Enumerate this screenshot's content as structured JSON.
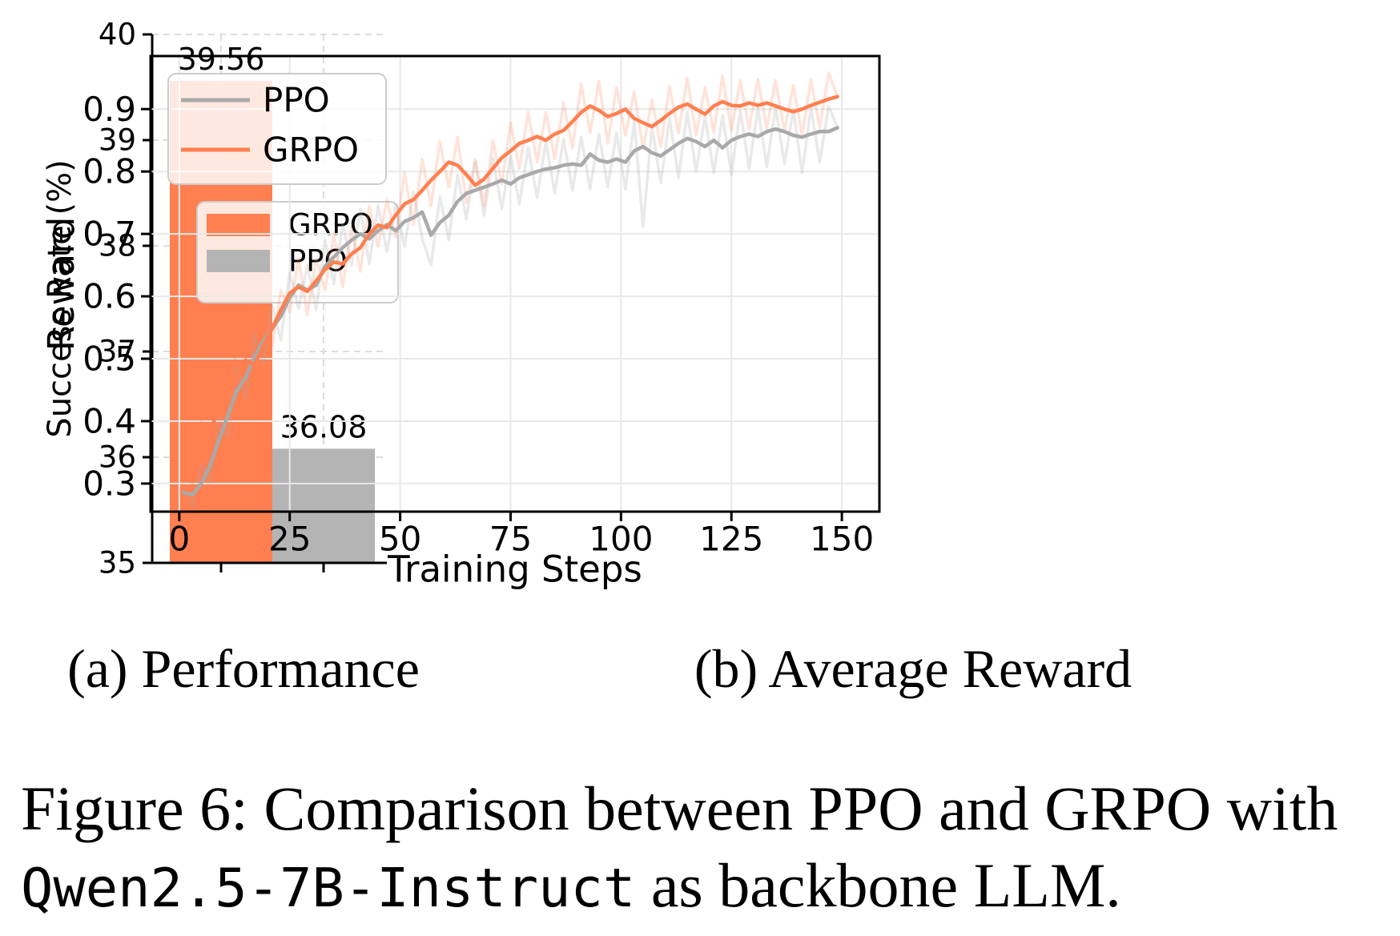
{
  "figure": {
    "subcaption_a": "(a) Performance",
    "subcaption_b": "(b) Average Reward",
    "caption_line1": "Figure 6: Comparison between PPO and GRPO with",
    "caption_mono": "Qwen2.5-7B-Instruct",
    "caption_line2_rest": " as backbone LLM."
  },
  "colors": {
    "grpo": "#ff7f50",
    "grpo_raw": "rgba(255,127,80,0.22)",
    "ppo_bar": "#b4b4b4",
    "ppo_line": "#a9a9a9",
    "ppo_raw": "rgba(169,169,169,0.25)",
    "grid_a": "#dcdcdc",
    "grid_b": "#e8e8e8",
    "spine": "#000000",
    "legend_border": "#cccccc",
    "legend_bg": "rgba(255,255,255,0.82)"
  },
  "chart_data": [
    {
      "id": "performance-bar",
      "type": "bar",
      "ylabel": "Success Rate (%)",
      "ylim": [
        35,
        40
      ],
      "yticks": [
        35,
        36,
        37,
        38,
        39,
        40
      ],
      "categories": [
        "GRPO",
        "PPO"
      ],
      "values": [
        39.56,
        36.08
      ],
      "bar_labels": [
        "39.56",
        "36.08"
      ],
      "bar_colors": [
        "#ff7f50",
        "#b4b4b4"
      ],
      "grid": true,
      "legend_position": "center-right",
      "legend": [
        {
          "label": "GRPO",
          "color": "#ff7f50"
        },
        {
          "label": "PPO",
          "color": "#b4b4b4"
        }
      ]
    },
    {
      "id": "reward-line",
      "type": "line",
      "xlabel": "Training Steps",
      "ylabel": "Reward",
      "xlim": [
        -6.5,
        158.5
      ],
      "ylim": [
        0.255,
        0.985
      ],
      "xticks": [
        0,
        25,
        50,
        75,
        100,
        125,
        150
      ],
      "yticks": [
        0.3,
        0.4,
        0.5,
        0.6,
        0.7,
        0.8,
        0.9
      ],
      "grid": true,
      "legend_position": "upper-left",
      "x": [
        1,
        3,
        5,
        7,
        9,
        11,
        13,
        15,
        17,
        19,
        21,
        23,
        25,
        27,
        29,
        31,
        33,
        35,
        37,
        39,
        41,
        43,
        45,
        47,
        49,
        51,
        53,
        55,
        57,
        59,
        61,
        63,
        65,
        67,
        69,
        71,
        73,
        75,
        77,
        79,
        81,
        83,
        85,
        87,
        89,
        91,
        93,
        95,
        97,
        99,
        101,
        103,
        105,
        107,
        109,
        111,
        113,
        115,
        117,
        119,
        121,
        123,
        125,
        127,
        129,
        131,
        133,
        135,
        137,
        139,
        141,
        143,
        145,
        147,
        149
      ],
      "series": [
        {
          "name": "PPO",
          "color": "#a9a9a9",
          "smoothed": [
            0.285,
            0.282,
            0.3,
            0.33,
            0.37,
            0.41,
            0.448,
            0.47,
            0.503,
            0.528,
            0.548,
            0.568,
            0.598,
            0.618,
            0.61,
            0.618,
            0.648,
            0.663,
            0.678,
            0.69,
            0.7,
            0.692,
            0.705,
            0.715,
            0.705,
            0.72,
            0.726,
            0.735,
            0.698,
            0.718,
            0.73,
            0.752,
            0.765,
            0.77,
            0.775,
            0.78,
            0.786,
            0.78,
            0.79,
            0.795,
            0.8,
            0.804,
            0.806,
            0.81,
            0.812,
            0.81,
            0.828,
            0.818,
            0.815,
            0.82,
            0.815,
            0.833,
            0.84,
            0.83,
            0.825,
            0.835,
            0.845,
            0.853,
            0.848,
            0.84,
            0.85,
            0.838,
            0.85,
            0.856,
            0.86,
            0.856,
            0.864,
            0.868,
            0.864,
            0.858,
            0.855,
            0.86,
            0.864,
            0.864,
            0.87
          ],
          "raw": [
            0.29,
            0.262,
            0.33,
            0.302,
            0.405,
            0.375,
            0.488,
            0.435,
            0.54,
            0.49,
            0.585,
            0.53,
            0.638,
            0.58,
            0.65,
            0.578,
            0.69,
            0.62,
            0.716,
            0.65,
            0.74,
            0.652,
            0.745,
            0.672,
            0.748,
            0.68,
            0.768,
            0.692,
            0.65,
            0.76,
            0.69,
            0.795,
            0.724,
            0.815,
            0.73,
            0.822,
            0.74,
            0.825,
            0.748,
            0.838,
            0.758,
            0.848,
            0.765,
            0.852,
            0.77,
            0.855,
            0.772,
            0.86,
            0.775,
            0.862,
            0.772,
            0.88,
            0.712,
            0.872,
            0.782,
            0.885,
            0.79,
            0.895,
            0.8,
            0.888,
            0.798,
            0.89,
            0.795,
            0.898,
            0.805,
            0.902,
            0.808,
            0.905,
            0.812,
            0.9,
            0.798,
            0.902,
            0.815,
            0.905,
            0.87
          ]
        },
        {
          "name": "GRPO",
          "color": "#ff7f50",
          "smoothed": [
            0.31,
            0.318,
            0.348,
            0.385,
            0.42,
            0.447,
            0.47,
            0.498,
            0.49,
            0.52,
            0.548,
            0.578,
            0.605,
            0.615,
            0.608,
            0.625,
            0.643,
            0.655,
            0.652,
            0.668,
            0.678,
            0.7,
            0.714,
            0.71,
            0.73,
            0.748,
            0.755,
            0.77,
            0.786,
            0.8,
            0.815,
            0.81,
            0.795,
            0.778,
            0.788,
            0.805,
            0.822,
            0.833,
            0.845,
            0.85,
            0.856,
            0.85,
            0.86,
            0.866,
            0.88,
            0.895,
            0.905,
            0.898,
            0.888,
            0.893,
            0.9,
            0.885,
            0.878,
            0.872,
            0.882,
            0.893,
            0.903,
            0.908,
            0.9,
            0.892,
            0.905,
            0.912,
            0.906,
            0.905,
            0.91,
            0.906,
            0.91,
            0.905,
            0.9,
            0.896,
            0.9,
            0.906,
            0.911,
            0.916,
            0.92
          ],
          "raw": [
            0.315,
            0.3,
            0.4,
            0.37,
            0.455,
            0.425,
            0.515,
            0.54,
            0.455,
            0.56,
            0.52,
            0.61,
            0.575,
            0.66,
            0.57,
            0.66,
            0.61,
            0.7,
            0.615,
            0.71,
            0.64,
            0.745,
            0.68,
            0.755,
            0.695,
            0.798,
            0.715,
            0.82,
            0.745,
            0.848,
            0.775,
            0.855,
            0.75,
            0.82,
            0.745,
            0.85,
            0.78,
            0.878,
            0.805,
            0.895,
            0.815,
            0.895,
            0.82,
            0.91,
            0.838,
            0.94,
            0.862,
            0.945,
            0.845,
            0.935,
            0.858,
            0.928,
            0.836,
            0.915,
            0.84,
            0.936,
            0.862,
            0.95,
            0.858,
            0.935,
            0.863,
            0.953,
            0.865,
            0.946,
            0.868,
            0.948,
            0.869,
            0.946,
            0.863,
            0.938,
            0.858,
            0.947,
            0.87,
            0.958,
            0.92
          ]
        }
      ]
    }
  ]
}
